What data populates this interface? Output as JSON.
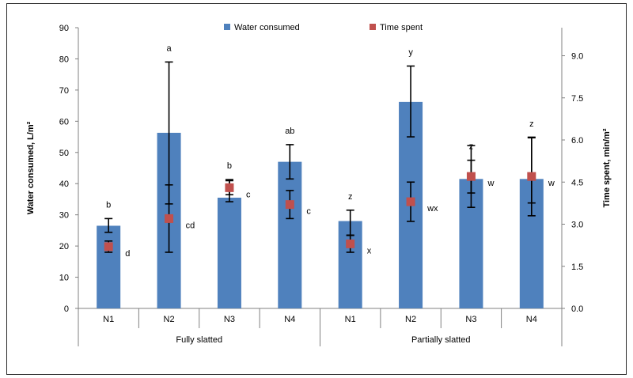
{
  "chart_data": {
    "type": "bar",
    "x_groups": [
      "Fully slatted",
      "Partially slatted"
    ],
    "categories": [
      "N1",
      "N2",
      "N3",
      "N4",
      "N1",
      "N2",
      "N3",
      "N4"
    ],
    "ylabel": "Water consumed, L/m²",
    "y2label": "Time spent, min/m²",
    "ylim": [
      0,
      90
    ],
    "y_ticks": [
      0,
      10,
      20,
      30,
      40,
      50,
      60,
      70,
      80,
      90
    ],
    "y2lim": [
      0,
      10
    ],
    "y2_ticks": [
      "0.0",
      "1.5",
      "3.0",
      "4.5",
      "6.0",
      "7.5",
      "9.0"
    ],
    "grid": false,
    "legend": {
      "placement": "top",
      "entries": [
        "Water consumed",
        "Time spent"
      ]
    },
    "colors": {
      "bar": "#4f81bd",
      "marker": "#c0504d",
      "axis": "#808080",
      "error": "#000000"
    },
    "series": [
      {
        "name": "Water consumed",
        "axis": "left",
        "type": "bar",
        "values": [
          26.5,
          56.3,
          35.5,
          47.0,
          28.0,
          66.2,
          41.5,
          41.5
        ],
        "error_low": [
          24.4,
          33.5,
          34.2,
          41.5,
          23.5,
          55.0,
          37.0,
          33.8
        ],
        "error_high": [
          28.8,
          79.0,
          41.3,
          52.5,
          31.5,
          77.7,
          47.5,
          54.7
        ],
        "labels": [
          "b",
          "a",
          "b",
          "ab",
          "z",
          "y",
          "z",
          "z"
        ]
      },
      {
        "name": "Time spent",
        "axis": "right",
        "type": "scatter",
        "values": [
          2.2,
          3.2,
          4.3,
          3.7,
          2.3,
          3.8,
          4.7,
          4.7
        ],
        "error_low": [
          2.0,
          2.0,
          4.05,
          3.2,
          2.0,
          3.1,
          3.6,
          3.3
        ],
        "error_high": [
          2.4,
          4.4,
          4.55,
          4.2,
          2.6,
          4.5,
          5.8,
          6.1
        ],
        "labels": [
          "d",
          "cd",
          "c",
          "c",
          "x",
          "wx",
          "w",
          "w"
        ]
      }
    ]
  }
}
